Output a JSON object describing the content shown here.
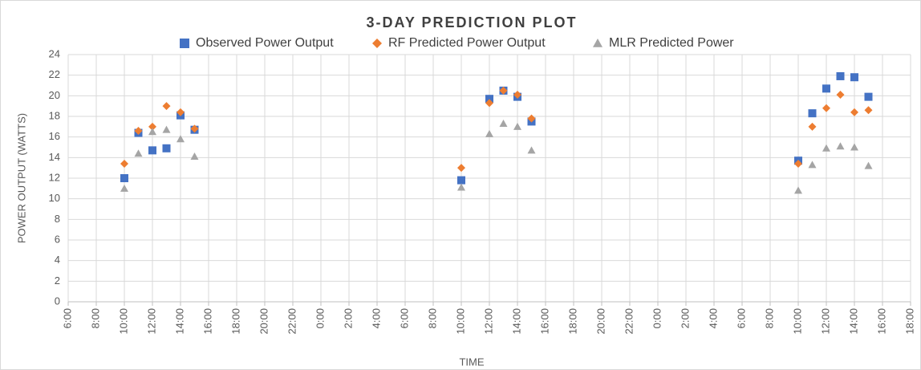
{
  "chart_data": {
    "type": "scatter",
    "title": "3-DAY PREDICTION PLOT",
    "x_label": "TIME",
    "y_label": "POWER OUTPUT (WATTS)",
    "x": [
      10,
      11,
      12,
      13,
      14,
      15,
      34,
      36,
      37,
      38,
      39,
      58,
      59,
      60,
      61,
      62,
      63
    ],
    "series": [
      {
        "name": "Observed Power Output",
        "color": "#4472c4",
        "marker": "square",
        "values": [
          12.0,
          16.4,
          14.7,
          14.9,
          18.1,
          16.7,
          11.8,
          19.7,
          20.5,
          19.9,
          17.5,
          13.7,
          18.3,
          20.7,
          21.9,
          21.8,
          19.9
        ]
      },
      {
        "name": "RF Predicted Power Output",
        "color": "#ed7d31",
        "marker": "diamond",
        "values": [
          13.4,
          16.6,
          17.0,
          19.0,
          18.4,
          16.8,
          13.0,
          19.3,
          20.5,
          20.1,
          17.8,
          13.4,
          17.0,
          18.8,
          20.1,
          18.4,
          18.6
        ]
      },
      {
        "name": "MLR Predicted Power",
        "color": "#a5a5a5",
        "marker": "triangle",
        "values": [
          11.0,
          14.4,
          16.5,
          16.7,
          15.8,
          14.1,
          11.1,
          16.3,
          17.3,
          17.0,
          14.7,
          10.8,
          13.3,
          14.9,
          15.1,
          15.0,
          13.2
        ]
      }
    ],
    "xlim": [
      6,
      66
    ],
    "xticks": [
      {
        "value": 6,
        "label": "6:00"
      },
      {
        "value": 8,
        "label": "8:00"
      },
      {
        "value": 10,
        "label": "10:00"
      },
      {
        "value": 12,
        "label": "12:00"
      },
      {
        "value": 14,
        "label": "14:00"
      },
      {
        "value": 16,
        "label": "16:00"
      },
      {
        "value": 18,
        "label": "18:00"
      },
      {
        "value": 20,
        "label": "20:00"
      },
      {
        "value": 22,
        "label": "22:00"
      },
      {
        "value": 24,
        "label": "0:00"
      },
      {
        "value": 26,
        "label": "2:00"
      },
      {
        "value": 28,
        "label": "4:00"
      },
      {
        "value": 30,
        "label": "6:00"
      },
      {
        "value": 32,
        "label": "8:00"
      },
      {
        "value": 34,
        "label": "10:00"
      },
      {
        "value": 36,
        "label": "12:00"
      },
      {
        "value": 38,
        "label": "14:00"
      },
      {
        "value": 40,
        "label": "16:00"
      },
      {
        "value": 42,
        "label": "18:00"
      },
      {
        "value": 44,
        "label": "20:00"
      },
      {
        "value": 46,
        "label": "22:00"
      },
      {
        "value": 48,
        "label": "0:00"
      },
      {
        "value": 50,
        "label": "2:00"
      },
      {
        "value": 52,
        "label": "4:00"
      },
      {
        "value": 54,
        "label": "6:00"
      },
      {
        "value": 56,
        "label": "8:00"
      },
      {
        "value": 58,
        "label": "10:00"
      },
      {
        "value": 60,
        "label": "12:00"
      },
      {
        "value": 62,
        "label": "14:00"
      },
      {
        "value": 64,
        "label": "16:00"
      },
      {
        "value": 66,
        "label": "18:00"
      }
    ],
    "ylim": [
      0,
      24
    ],
    "yticks": [
      0,
      2,
      4,
      6,
      8,
      10,
      12,
      14,
      16,
      18,
      20,
      22,
      24
    ],
    "grid": true,
    "legend": "top"
  }
}
